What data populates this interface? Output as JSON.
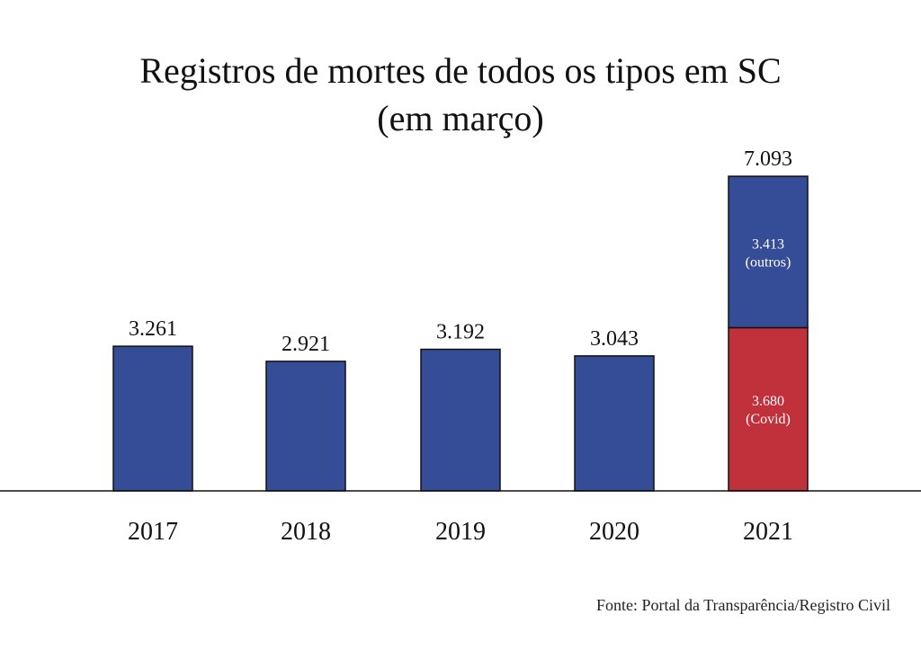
{
  "chart_data": {
    "type": "bar",
    "title_lines": [
      "Registros de mortes de todos os tipos em SC",
      "(em março)"
    ],
    "categories": [
      "2017",
      "2018",
      "2019",
      "2020",
      "2021"
    ],
    "values": [
      3261,
      2921,
      3192,
      3043,
      7093
    ],
    "value_labels": [
      "3.261",
      "2.921",
      "3.192",
      "3.043",
      "7.093"
    ],
    "stacked_2021": [
      {
        "name": "Covid",
        "value": 3680,
        "label_value": "3.680",
        "label_text": "(Covid)",
        "color": "#c0313b"
      },
      {
        "name": "outros",
        "value": 3413,
        "label_value": "3.413",
        "label_text": "(outros)",
        "color": "#354d96"
      }
    ],
    "ylim": [
      0,
      7500
    ],
    "bar_color": "#354d96",
    "source": "Fonte: Portal da Transparência/Registro Civil",
    "grid": false
  }
}
